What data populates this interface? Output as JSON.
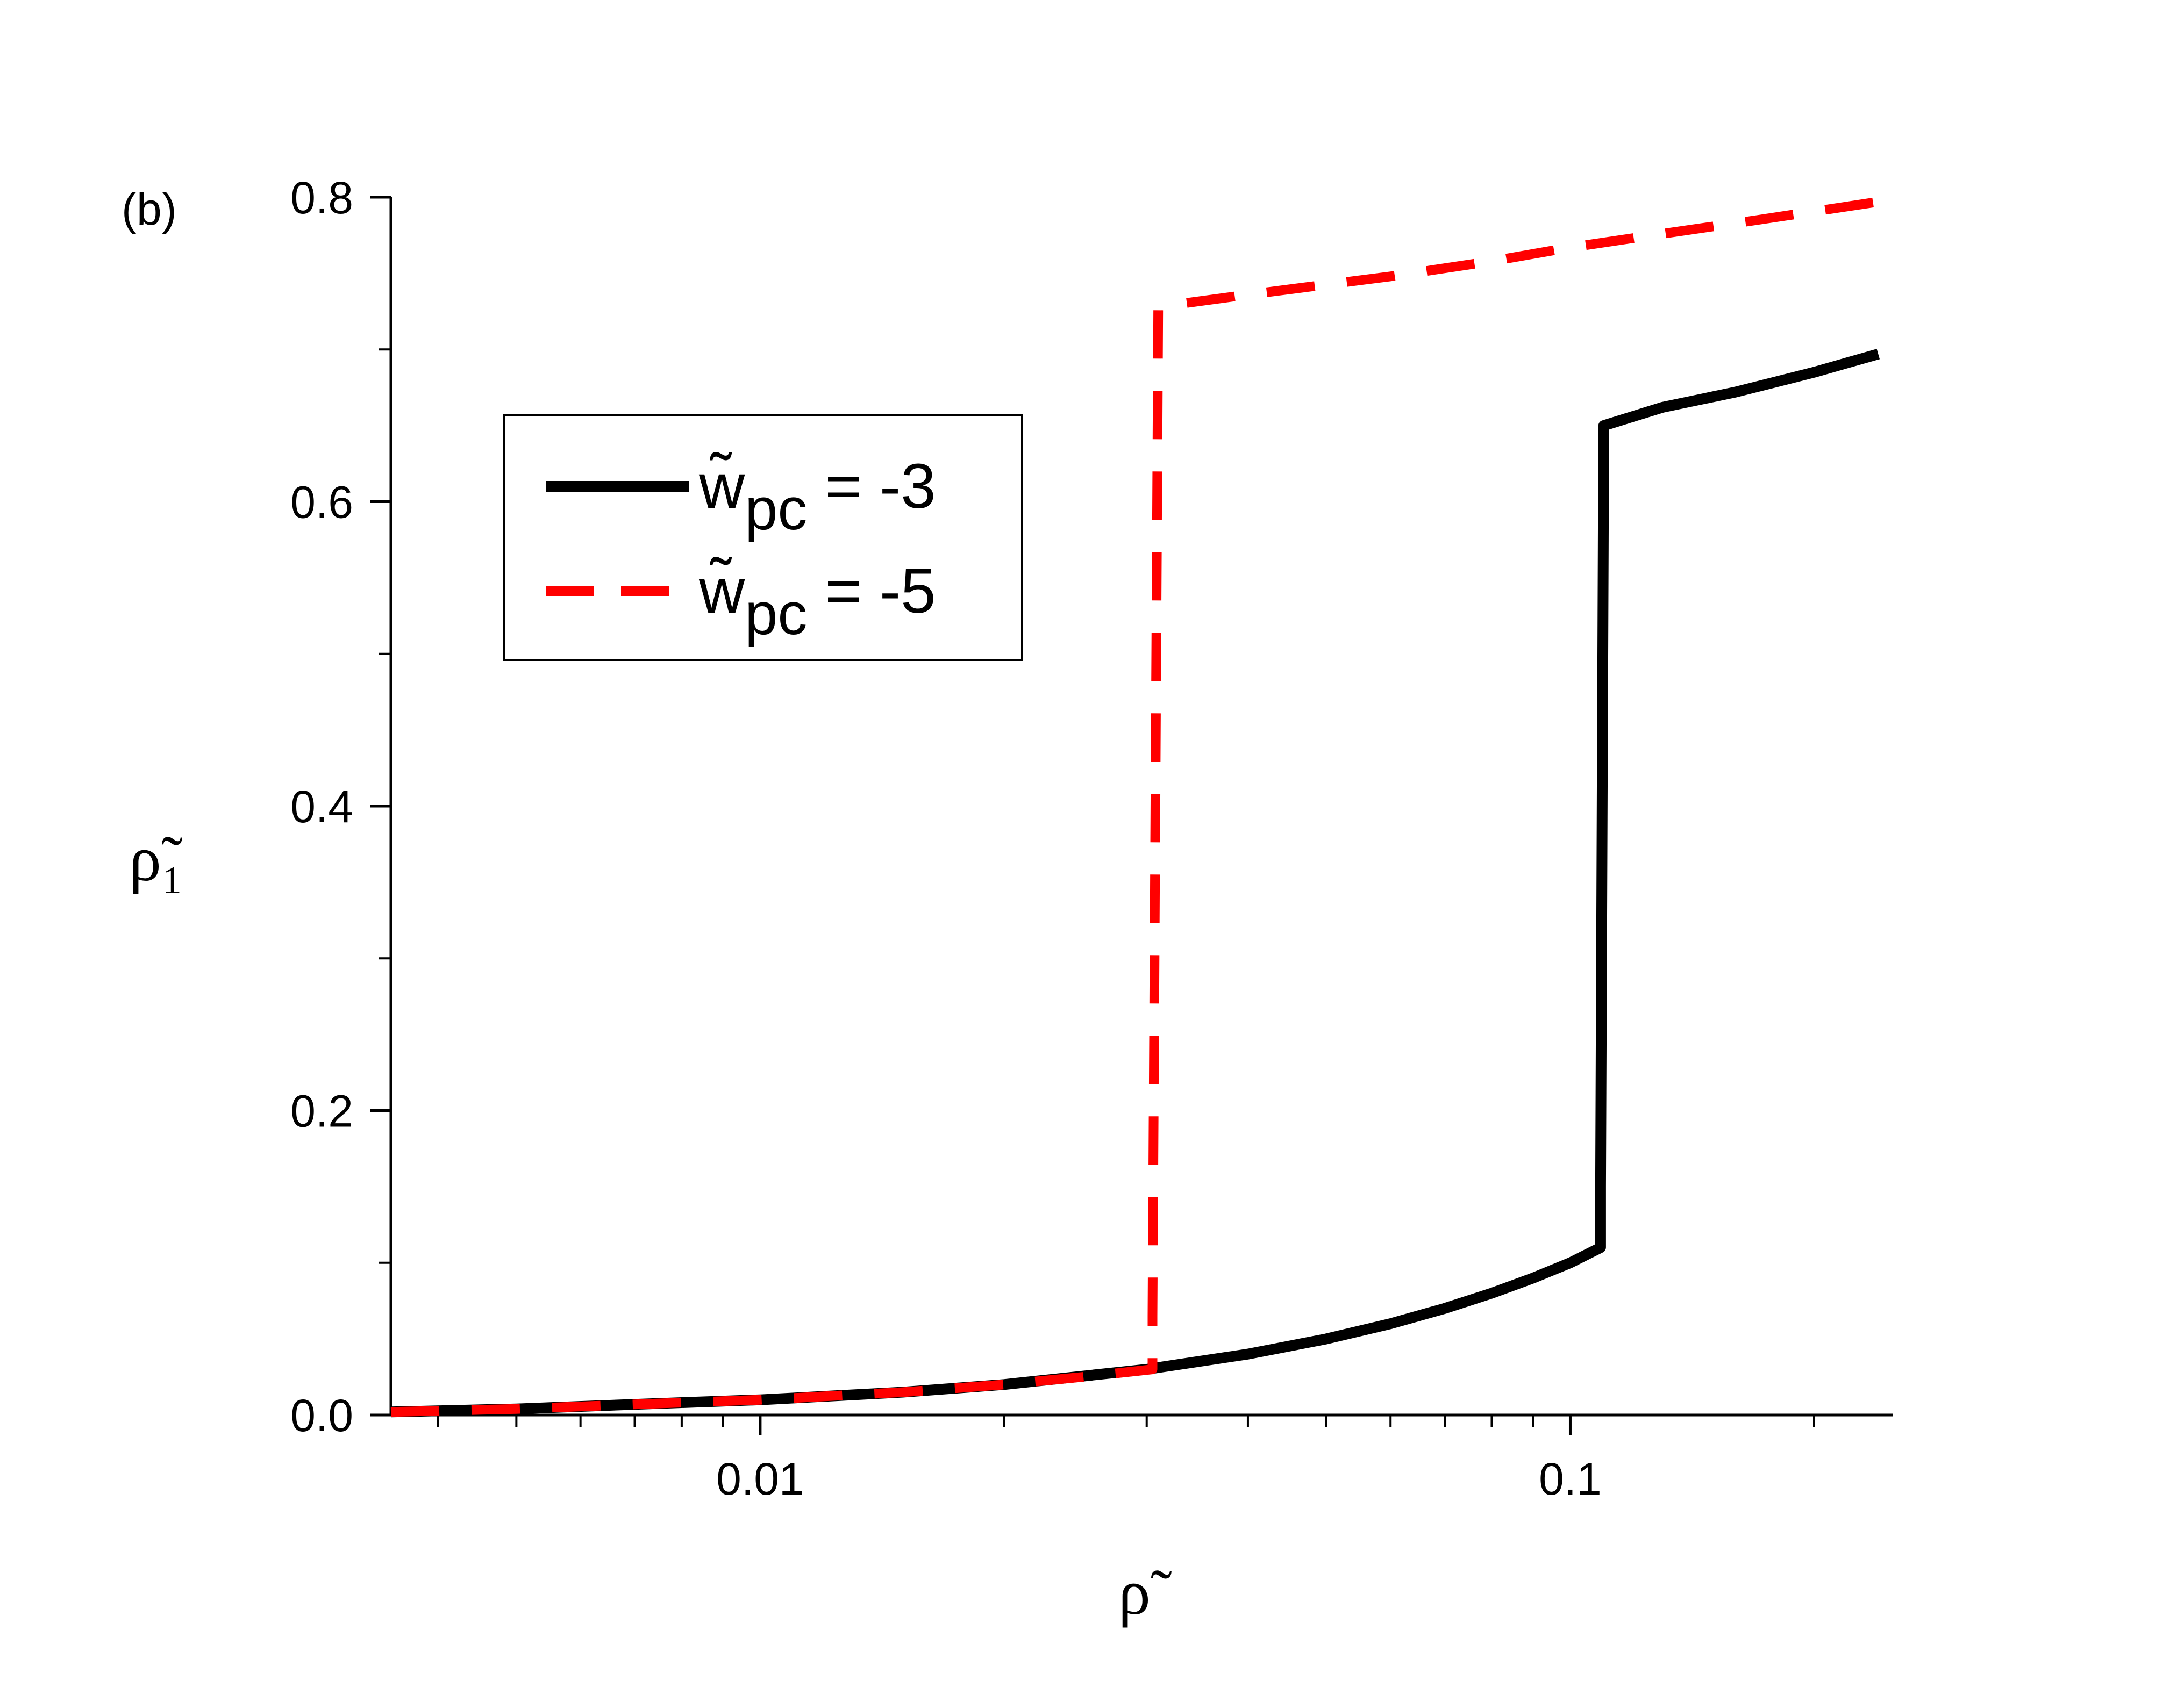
{
  "chart_data": {
    "type": "line",
    "panel_label": "(b)",
    "xlabel": "ρ̃",
    "ylabel": "ρ̃₁",
    "xscale": "log",
    "xlim": [
      0.0035,
      0.25
    ],
    "ylim": [
      0,
      0.8
    ],
    "x_major_ticks": [
      0.01,
      0.1
    ],
    "x_tick_labels": [
      "0.01",
      "0.1"
    ],
    "x_minor_ticks": [
      0.004,
      0.005,
      0.006,
      0.007,
      0.008,
      0.009,
      0.02,
      0.03,
      0.04,
      0.05,
      0.06,
      0.07,
      0.08,
      0.09,
      0.2
    ],
    "y_major_ticks": [
      0.0,
      0.2,
      0.4,
      0.6,
      0.8
    ],
    "y_tick_labels": [
      "0.0",
      "0.2",
      "0.4",
      "0.6",
      "0.8"
    ],
    "y_minor_ticks": [
      0.1,
      0.3,
      0.5,
      0.7
    ],
    "grid": false,
    "legend_position": "upper-left",
    "series": [
      {
        "name": "w̃pc = -3",
        "legend_symbol": "w̃",
        "legend_sub": "pc",
        "legend_value": " = -3",
        "color": "#000000",
        "dash": "solid",
        "x": [
          0.0035,
          0.005,
          0.007,
          0.01,
          0.015,
          0.02,
          0.03,
          0.04,
          0.05,
          0.06,
          0.07,
          0.08,
          0.09,
          0.1,
          0.109,
          0.109,
          0.11,
          0.13,
          0.16,
          0.2,
          0.24
        ],
        "y": [
          0.002,
          0.004,
          0.007,
          0.01,
          0.015,
          0.02,
          0.03,
          0.04,
          0.05,
          0.06,
          0.07,
          0.08,
          0.09,
          0.1,
          0.11,
          0.15,
          0.65,
          0.662,
          0.672,
          0.685,
          0.697
        ]
      },
      {
        "name": "w̃pc = -5",
        "legend_symbol": "w̃",
        "legend_sub": "pc",
        "legend_value": " = -5",
        "color": "#ff0000",
        "dash": "dashed",
        "x": [
          0.0035,
          0.005,
          0.007,
          0.01,
          0.015,
          0.02,
          0.025,
          0.0305,
          0.0305,
          0.031,
          0.04,
          0.06,
          0.08,
          0.1,
          0.13,
          0.17,
          0.24
        ],
        "y": [
          0.002,
          0.004,
          0.007,
          0.01,
          0.015,
          0.02,
          0.025,
          0.03,
          0.065,
          0.728,
          0.736,
          0.748,
          0.758,
          0.767,
          0.776,
          0.785,
          0.797
        ]
      }
    ]
  }
}
